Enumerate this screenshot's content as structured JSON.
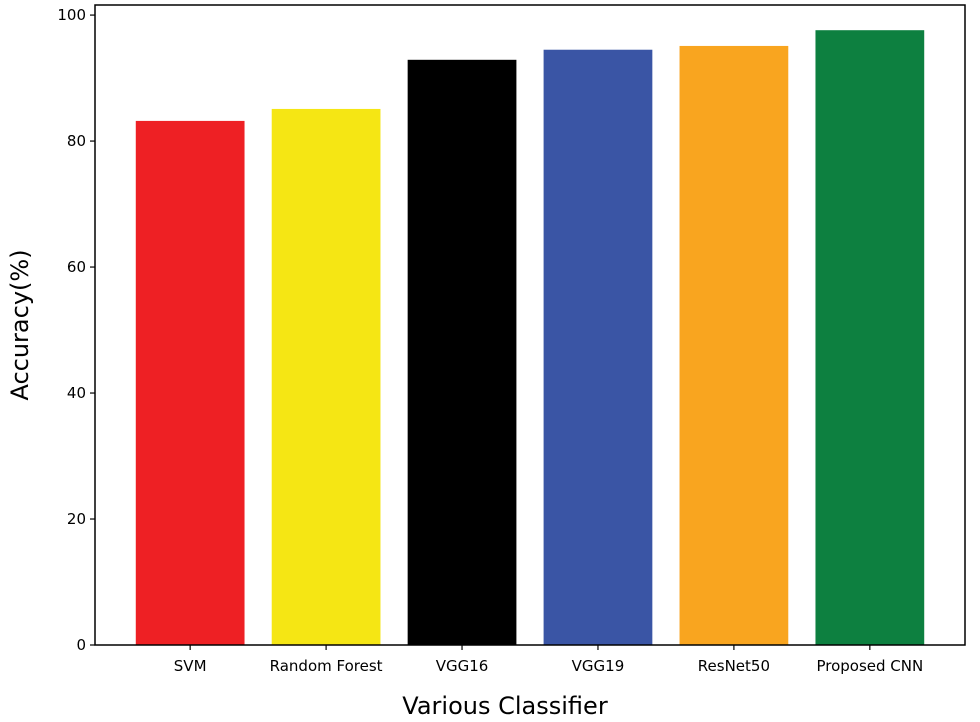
{
  "chart_data": {
    "type": "bar",
    "title": "",
    "xlabel": "Various Classifier",
    "ylabel": "Accuracy(%)",
    "categories": [
      "SVM",
      "Random Forest",
      "VGG16",
      "VGG19",
      "ResNet50",
      "Proposed CNN"
    ],
    "values": [
      83.2,
      85.1,
      92.9,
      94.5,
      95.1,
      97.6
    ],
    "colors": [
      "#ee2024",
      "#f5e614",
      "#000000",
      "#3a55a5",
      "#f9a51f",
      "#0d8040"
    ],
    "ylim": [
      0,
      100
    ],
    "yticks": [
      0,
      20,
      40,
      60,
      80,
      100
    ],
    "grid": false,
    "legend": "none"
  }
}
